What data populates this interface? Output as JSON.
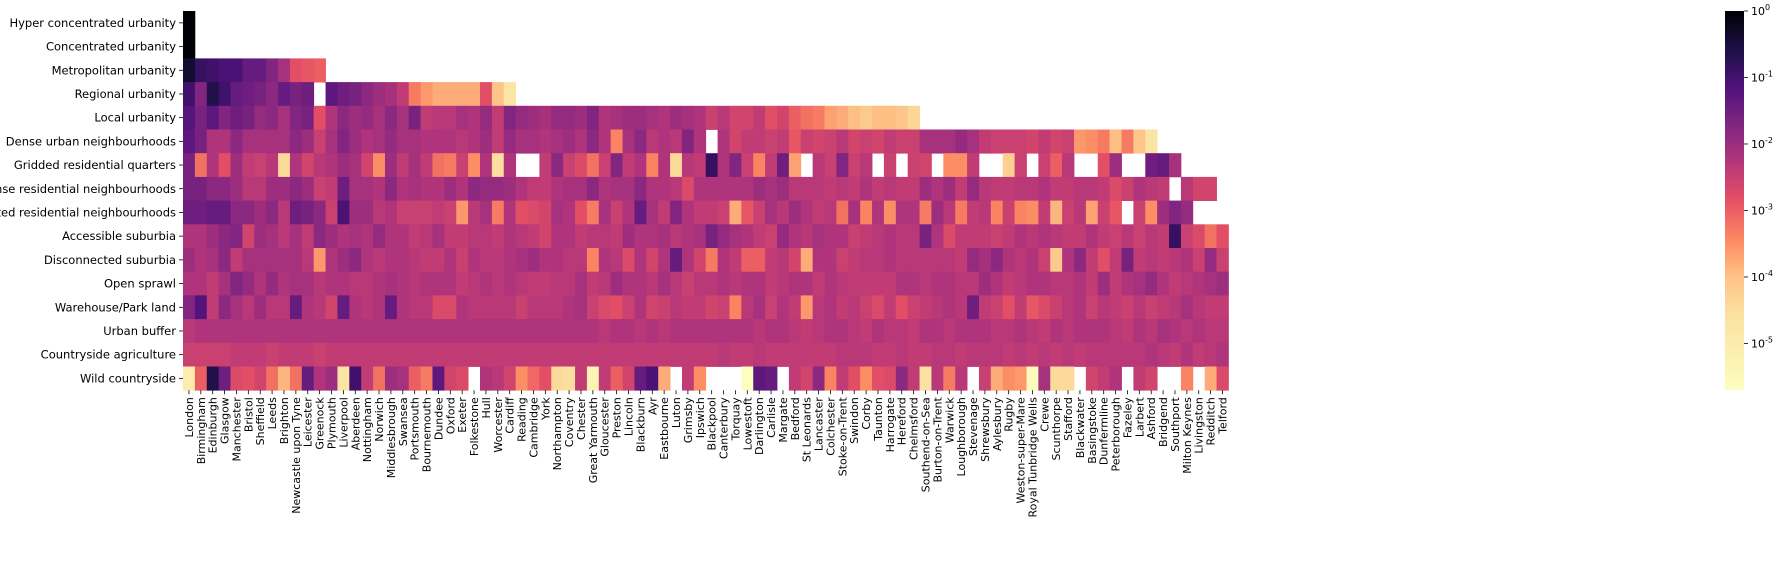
{
  "chart_data": {
    "type": "heatmap",
    "title": "",
    "xlabel": "",
    "ylabel": "",
    "rows": [
      "Hyper concentrated urbanity",
      "Concentrated urbanity",
      "Metropolitan urbanity",
      "Regional urbanity",
      "Local urbanity",
      "Dense urban neighbourhoods",
      "Gridded residential quarters",
      "Dense residential neighbourhoods",
      "Connected residential neighbourhoods",
      "Accessible suburbia",
      "Disconnected suburbia",
      "Open sprawl",
      "Warehouse/Park land",
      "Urban buffer",
      "Countryside agriculture",
      "Wild countryside"
    ],
    "columns": [
      "London",
      "Birmingham",
      "Edinburgh",
      "Glasgow",
      "Manchester",
      "Bristol",
      "Sheffield",
      "Leeds",
      "Brighton",
      "Newcastle upon Tyne",
      "Leicester",
      "Greenock",
      "Plymouth",
      "Liverpool",
      "Aberdeen",
      "Nottingham",
      "Norwich",
      "Middlesbrough",
      "Swansea",
      "Portsmouth",
      "Bournemouth",
      "Dundee",
      "Oxford",
      "Exeter",
      "Folkestone",
      "Hull",
      "Worcester",
      "Cardiff",
      "Reading",
      "Cambridge",
      "York",
      "Northampton",
      "Coventry",
      "Chester",
      "Great Yarmouth",
      "Gloucester",
      "Preston",
      "Lincoln",
      "Blackburn",
      "Ayr",
      "Eastbourne",
      "Luton",
      "Grimsby",
      "Ipswich",
      "Blackpool",
      "Canterbury",
      "Torquay",
      "Lowestoft",
      "Darlington",
      "Carlisle",
      "Margate",
      "Bedford",
      "St Leonards",
      "Lancaster",
      "Colchester",
      "Stoke-on-Trent",
      "Swindon",
      "Corby",
      "Taunton",
      "Harrogate",
      "Hereford",
      "Chelmsford",
      "Southend-on-Sea",
      "Burton-on-Trent",
      "Warwick",
      "Loughborough",
      "Stevenage",
      "Shrewsbury",
      "Aylesbury",
      "Rugby",
      "Weston-super-Mare",
      "Royal Tunbridge Wells",
      "Crewe",
      "Scunthorpe",
      "Stafford",
      "Blackwater",
      "Basingstoke",
      "Dunfermline",
      "Peterborough",
      "Fazeley",
      "Larbert",
      "Ashford",
      "Bridgend",
      "Southport",
      "Milton Keynes",
      "Livingston",
      "Redditch",
      "Telford"
    ],
    "colorbar": {
      "scale": "log",
      "min": 2e-06,
      "max": 1,
      "colormap": "magma_r",
      "tick_labels": [
        "10^0",
        "10^-1",
        "10^-2",
        "10^-3",
        "10^-4",
        "10^-5"
      ]
    },
    "note_values": "log10 of share, blank = no data",
    "values": [
      [
        0.0
      ],
      [
        0.0
      ],
      [
        -0.3,
        -0.7,
        -0.8,
        -0.9,
        -0.9,
        -1.2,
        -1.2,
        -1.5,
        -1.9,
        -2.6,
        -2.7,
        -2.8
      ],
      [
        -0.8,
        -1.5,
        -0.5,
        -0.8,
        -1.2,
        -1.3,
        -1.4,
        -1.6,
        -1.2,
        -1.4,
        -1.3,
        null,
        -1.1,
        -1.3,
        -1.4,
        -1.6,
        -1.8,
        -1.9,
        -2.2,
        -3.1,
        -3.4,
        -3.6,
        -3.6,
        -3.6,
        -3.6,
        -2.6,
        -3.9,
        -4.6
      ],
      [
        -1.0,
        -1.4,
        -1.1,
        -1.5,
        -1.3,
        -1.4,
        -1.7,
        -1.6,
        -1.9,
        -1.5,
        -1.4,
        -2.6,
        -2.0,
        -1.6,
        -1.8,
        -1.7,
        -1.9,
        -1.6,
        -1.9,
        -1.4,
        -2.2,
        -2.1,
        -2.1,
        -1.9,
        -2.0,
        -1.7,
        -2.2,
        -1.5,
        -1.7,
        -1.8,
        -1.9,
        -1.7,
        -1.7,
        -1.8,
        -1.5,
        -2.0,
        -1.9,
        -1.8,
        -1.8,
        -1.9,
        -2.0,
        -1.8,
        -1.9,
        -2.0,
        -2.3,
        -2.1,
        -2.4,
        -2.4,
        -2.2,
        -2.6,
        -2.4,
        -2.8,
        -3.0,
        -3.1,
        -3.5,
        -3.6,
        -3.8,
        -4.0,
        -3.8,
        -3.8,
        -3.9,
        -4.2
      ],
      [
        -1.1,
        -1.4,
        -2.0,
        -2.0,
        -1.6,
        -1.9,
        -1.9,
        -1.9,
        -1.9,
        -1.6,
        -1.8,
        -2.3,
        -1.9,
        -1.5,
        -1.8,
        -2.0,
        -1.9,
        -1.7,
        -1.9,
        -1.9,
        -2.0,
        -2.0,
        -2.0,
        -2.1,
        -2.0,
        -1.8,
        -2.2,
        -1.7,
        -1.9,
        -1.9,
        -2.0,
        -1.9,
        -1.8,
        -2.0,
        -1.6,
        -2.0,
        -3.2,
        -1.9,
        -1.6,
        -2.1,
        -2.0,
        -2.1,
        -1.5,
        -2.0,
        null,
        -2.0,
        -2.4,
        -2.2,
        -2.2,
        -2.3,
        -2.2,
        -2.7,
        -2.3,
        -2.4,
        -2.3,
        -2.1,
        -2.4,
        -2.3,
        -2.4,
        -2.2,
        -2.3,
        -2.3,
        -1.9,
        -1.9,
        -1.9,
        -1.7,
        -1.9,
        -2.2,
        -2.3,
        -2.3,
        -2.3,
        -2.4,
        -2.2,
        -2.4,
        -2.3,
        -3.4,
        -3.3,
        -3.1,
        -3.8,
        -3.1,
        -3.9,
        -4.6
      ],
      [
        -1.4,
        -3.0,
        -2.0,
        -2.6,
        -1.8,
        -2.2,
        -2.3,
        -2.1,
        -4.3,
        -2.0,
        -2.4,
        -2.1,
        -2.0,
        -1.8,
        -1.9,
        -2.4,
        -3.3,
        -1.8,
        -2.2,
        -1.9,
        -2.2,
        -3.0,
        -3.1,
        -2.3,
        -3.3,
        -2.0,
        -4.4,
        -2.0,
        null,
        null,
        -2.2,
        -1.6,
        -2.3,
        -2.5,
        -3.0,
        -2.3,
        -1.5,
        -2.2,
        -2.0,
        -3.2,
        -2.0,
        -4.3,
        -2.1,
        -2.2,
        -0.7,
        -2.0,
        -1.5,
        -2.3,
        -3.2,
        -2.2,
        -1.3,
        -3.5,
        null,
        -2.1,
        -2.3,
        -1.5,
        -2.3,
        -2.1,
        null,
        -2.3,
        null,
        -2.3,
        -2.4,
        null,
        -3.3,
        -3.3,
        -2.2,
        null,
        null,
        -4.1,
        -2.3,
        null,
        -2.3,
        -2.8,
        -2.1,
        null,
        null,
        -2.6,
        -1.8,
        null,
        null,
        -1.3,
        -1.2,
        -1.9
      ],
      [
        -1.4,
        -1.4,
        -1.6,
        -1.6,
        -1.8,
        -2.1,
        -2.1,
        -1.8,
        -1.8,
        -1.6,
        -1.8,
        -2.3,
        -2.2,
        -1.3,
        -1.9,
        -1.9,
        -2.0,
        -1.6,
        -2.0,
        -1.9,
        -2.0,
        -2.0,
        -1.8,
        -2.0,
        -1.6,
        -1.7,
        -1.7,
        -1.8,
        -2.0,
        -2.2,
        -2.2,
        -2.0,
        -1.9,
        -1.9,
        -1.6,
        -2.0,
        -1.9,
        -1.9,
        -1.6,
        -2.0,
        -2.0,
        -2.1,
        -2.5,
        -2.0,
        -2.0,
        -2.0,
        -2.0,
        -2.0,
        -1.8,
        -1.9,
        -1.8,
        -2.1,
        -2.1,
        -2.1,
        -2.2,
        -2.1,
        -2.2,
        -2.0,
        -2.2,
        -2.1,
        -2.2,
        -2.2,
        -1.8,
        -2.0,
        -1.8,
        -2.2,
        -1.7,
        -2.1,
        -2.2,
        -2.2,
        -2.1,
        -2.1,
        -2.0,
        -2.2,
        -2.2,
        -2.1,
        -2.1,
        -2.2,
        -2.5,
        -2.3,
        -2.0,
        -2.1,
        -2.2,
        null,
        -2.1,
        -2.4,
        -2.4
      ],
      [
        -1.3,
        -1.3,
        -1.2,
        -1.2,
        -1.6,
        -1.6,
        -1.8,
        -1.6,
        -2.1,
        -1.3,
        -1.4,
        -1.6,
        -2.3,
        -0.9,
        -1.8,
        -1.8,
        -2.1,
        -2.0,
        -2.3,
        -2.3,
        -2.3,
        -2.2,
        -2.3,
        -3.4,
        -2.1,
        -1.9,
        -3.1,
        -2.0,
        -2.6,
        -2.5,
        -2.4,
        -1.9,
        -2.0,
        -2.6,
        -3.1,
        -1.9,
        -2.3,
        -2.0,
        -1.2,
        -1.9,
        -2.2,
        -1.5,
        -2.0,
        -2.2,
        -2.2,
        -2.3,
        -3.6,
        -2.7,
        -2.3,
        -1.9,
        -2.1,
        -1.8,
        -2.0,
        -2.2,
        -2.1,
        -3.0,
        -1.9,
        -3.2,
        -2.0,
        -3.3,
        -2.0,
        -2.0,
        -3.1,
        -1.8,
        -2.1,
        -3.1,
        -2.2,
        -2.1,
        -3.2,
        -2.3,
        -3.2,
        -3.3,
        -2.2,
        -3.7,
        -2.3,
        -2.1,
        -3.5,
        -2.3,
        -2.7,
        null,
        -2.3,
        -3.3,
        -1.8,
        -1.5,
        -1.7,
        null,
        null
      ],
      [
        -2.0,
        -2.0,
        -1.8,
        -1.6,
        -1.5,
        -2.4,
        -1.8,
        -1.9,
        -2.1,
        -1.9,
        -2.2,
        -1.6,
        -1.8,
        -2.0,
        -1.9,
        -2.0,
        -1.7,
        -2.0,
        -2.0,
        -2.2,
        -2.1,
        -1.9,
        -2.2,
        -2.2,
        -2.1,
        -2.1,
        -2.2,
        -2.0,
        -2.1,
        -2.2,
        -2.4,
        -2.0,
        -2.0,
        -2.2,
        -2.1,
        -2.1,
        -2.2,
        -1.8,
        -2.0,
        -2.0,
        -1.9,
        -2.1,
        -2.0,
        -1.9,
        -1.4,
        -1.7,
        -1.9,
        -2.0,
        -2.2,
        -2.3,
        -1.7,
        -2.0,
        -2.1,
        -1.9,
        -2.0,
        -2.0,
        -2.3,
        -2.2,
        -2.1,
        -2.0,
        -2.1,
        -2.1,
        -1.4,
        -2.0,
        -2.5,
        -2.2,
        -2.2,
        -2.2,
        -2.3,
        -2.2,
        -2.0,
        -2.1,
        -2.0,
        -2.1,
        -2.2,
        -2.2,
        -2.0,
        -2.2,
        -2.3,
        -2.1,
        -2.3,
        -2.1,
        -2.2,
        -0.7,
        -2.3,
        -2.5,
        -3.0,
        -2.6
      ],
      [
        -1.8,
        -2.0,
        -1.9,
        -1.6,
        -2.2,
        -1.9,
        -1.9,
        -1.9,
        -1.9,
        -1.9,
        -2.1,
        -3.4,
        -2.0,
        -1.8,
        -1.6,
        -2.0,
        -2.1,
        -2.0,
        -2.0,
        -2.1,
        -2.2,
        -2.2,
        -2.0,
        -2.3,
        -2.0,
        -2.1,
        -2.1,
        -2.0,
        -1.9,
        -1.8,
        -2.0,
        -2.0,
        -2.1,
        -2.1,
        -3.2,
        -2.0,
        -2.1,
        -2.5,
        -2.0,
        -2.4,
        -2.0,
        -1.2,
        -2.0,
        -2.4,
        -3.1,
        -2.0,
        -2.2,
        -2.8,
        -2.8,
        -2.2,
        -2.1,
        -2.4,
        -3.6,
        -2.0,
        -2.0,
        -2.3,
        -2.2,
        -2.1,
        -2.1,
        -2.0,
        -2.1,
        -2.1,
        -2.1,
        -2.1,
        -2.1,
        -2.2,
        -1.7,
        -1.9,
        -1.6,
        -2.0,
        -2.1,
        -2.0,
        -2.3,
        -4.0,
        -2.0,
        -1.6,
        -2.2,
        -2.6,
        -2.2,
        -1.4,
        -2.2,
        -2.1,
        -2.2,
        -2.1,
        -2.0,
        -2.3,
        -1.7,
        -2.3
      ],
      [
        -2.0,
        -2.0,
        -2.2,
        -1.9,
        -1.5,
        -1.7,
        -2.0,
        -1.7,
        -2.0,
        -1.9,
        -1.9,
        -2.1,
        -2.0,
        -2.0,
        -2.1,
        -2.1,
        -2.0,
        -1.9,
        -2.0,
        -2.1,
        -2.0,
        -2.0,
        -2.0,
        -2.2,
        -2.1,
        -2.0,
        -2.1,
        -2.0,
        -2.1,
        -2.2,
        -2.2,
        -2.1,
        -2.1,
        -1.9,
        -2.2,
        -2.1,
        -1.8,
        -2.0,
        -2.0,
        -2.1,
        -1.9,
        -2.1,
        -2.3,
        -2.1,
        -2.1,
        -2.0,
        -2.1,
        -2.0,
        -2.0,
        -2.2,
        -2.1,
        -2.0,
        -2.0,
        -2.2,
        -2.0,
        -2.1,
        -2.2,
        -2.2,
        -2.2,
        -2.2,
        -2.0,
        -2.0,
        -2.1,
        -2.0,
        -2.0,
        -2.1,
        -2.1,
        -1.8,
        -2.0,
        -2.2,
        -2.1,
        -2.0,
        -2.0,
        -2.1,
        -2.1,
        -2.0,
        -2.2,
        -1.8,
        -2.2,
        -2.0,
        -1.9,
        -1.7,
        -2.0,
        -2.2,
        -2.1,
        -2.0,
        -1.9,
        -1.8
      ],
      [
        -1.5,
        -1.0,
        -2.2,
        -1.6,
        -1.9,
        -2.1,
        -1.8,
        -2.1,
        -2.1,
        -1.2,
        -2.0,
        -2.1,
        -2.4,
        -1.2,
        -2.0,
        -2.1,
        -2.0,
        -1.2,
        -2.0,
        -2.1,
        -2.1,
        -2.5,
        -2.5,
        -2.0,
        -2.1,
        -2.1,
        -2.1,
        -2.1,
        -2.3,
        -2.1,
        -2.1,
        -2.1,
        -2.0,
        -1.9,
        -2.3,
        -2.5,
        -2.6,
        -2.3,
        -2.0,
        -2.4,
        -2.3,
        -2.1,
        -2.2,
        -2.2,
        -2.4,
        -2.3,
        -3.2,
        -2.1,
        -1.9,
        -2.3,
        -2.0,
        -2.2,
        -3.4,
        -2.1,
        -2.0,
        -2.2,
        -2.1,
        -2.3,
        -2.5,
        -2.2,
        -2.6,
        -2.3,
        -2.2,
        -2.1,
        -2.0,
        -2.1,
        -1.3,
        -2.2,
        -2.3,
        -2.6,
        -2.2,
        -2.7,
        -2.5,
        -2.3,
        -2.1,
        -2.0,
        -2.3,
        -2.1,
        -2.2,
        -2.3,
        -2.1,
        -2.3,
        -2.2,
        -2.1,
        -1.9,
        -2.1,
        -2.2,
        -2.2
      ],
      [
        -2.1,
        -2.0,
        -2.0,
        -2.0,
        -2.0,
        -2.0,
        -2.0,
        -2.0,
        -2.0,
        -2.0,
        -2.0,
        -2.0,
        -2.0,
        -2.0,
        -2.0,
        -2.0,
        -2.0,
        -2.0,
        -2.0,
        -2.0,
        -2.0,
        -2.0,
        -2.0,
        -2.0,
        -2.0,
        -2.0,
        -2.0,
        -2.0,
        -2.0,
        -2.0,
        -2.0,
        -2.0,
        -2.0,
        -2.0,
        -2.0,
        -2.1,
        -2.0,
        -2.0,
        -2.1,
        -2.0,
        -2.1,
        -2.0,
        -2.0,
        -2.0,
        -2.0,
        -2.0,
        -2.0,
        -2.0,
        -2.1,
        -2.0,
        -2.0,
        -2.1,
        -2.2,
        -2.1,
        -2.0,
        -2.0,
        -2.1,
        -2.2,
        -2.0,
        -2.1,
        -2.1,
        -2.2,
        -2.0,
        -2.0,
        -2.1,
        -2.0,
        -2.0,
        -2.0,
        -2.1,
        -2.1,
        -2.0,
        -2.1,
        -2.2,
        -2.0,
        -2.1,
        -2.0,
        -2.0,
        -2.0,
        -2.1,
        -2.2,
        -2.0,
        -2.1,
        -1.9,
        -2.0,
        -2.1,
        -2.0,
        -2.1,
        -2.1
      ],
      [
        -2.3,
        -2.3,
        -2.3,
        -2.3,
        -2.2,
        -2.2,
        -2.2,
        -2.3,
        -2.2,
        -2.2,
        -2.2,
        -2.3,
        -2.2,
        -2.2,
        -2.2,
        -2.2,
        -2.2,
        -2.2,
        -2.2,
        -2.2,
        -2.2,
        -2.2,
        -2.2,
        -2.2,
        -2.2,
        -2.2,
        -2.2,
        -2.2,
        -2.2,
        -2.2,
        -2.2,
        -2.2,
        -2.2,
        -2.2,
        -2.2,
        -2.2,
        -2.2,
        -2.2,
        -2.2,
        -2.2,
        -2.2,
        -2.2,
        -2.2,
        -2.2,
        -2.2,
        -2.1,
        -2.2,
        -2.2,
        -2.1,
        -2.2,
        -2.2,
        -2.2,
        -2.2,
        -2.2,
        -2.2,
        -2.1,
        -2.1,
        -2.1,
        -2.2,
        -2.2,
        -2.1,
        -2.2,
        -2.2,
        -2.1,
        -2.1,
        -2.2,
        -2.1,
        -2.1,
        -2.1,
        -2.2,
        -2.1,
        -2.2,
        -2.1,
        -2.2,
        -2.1,
        -2.2,
        -2.1,
        -2.1,
        -2.1,
        -2.1,
        -2.1,
        -2.0,
        -2.1,
        -2.2,
        -2.0,
        -2.2,
        -2.1,
        -2.0
      ],
      [
        -5.0,
        -2.8,
        -0.5,
        -1.3,
        -2.5,
        -2.6,
        -2.4,
        -3.0,
        -3.7,
        -3.0,
        -1.2,
        -2.0,
        -1.8,
        -4.6,
        -0.8,
        -2.2,
        -3.0,
        -1.8,
        -1.9,
        -2.8,
        -3.1,
        -1.1,
        -2.4,
        -2.5,
        null,
        -2.0,
        -2.1,
        -2.4,
        -3.3,
        -2.9,
        -2.6,
        -4.3,
        -4.4,
        -2.2,
        -5.3,
        -2.2,
        -2.8,
        -2.4,
        -1.2,
        -0.9,
        -3.6,
        null,
        -2.2,
        -3.3,
        null,
        null,
        null,
        -5.7,
        -1.1,
        -1.2,
        null,
        -2.2,
        -2.4,
        -1.6,
        -3.2,
        -2.2,
        -2.6,
        -3.3,
        -2.6,
        -2.5,
        -1.6,
        -2.2,
        -4.5,
        -2.1,
        -3.1,
        -2.1,
        null,
        -2.3,
        -3.6,
        -3.3,
        -3.4,
        -5.6,
        -1.9,
        -4.3,
        -4.3,
        null,
        -2.4,
        -2.2,
        -2.0,
        null,
        -2.2,
        -2.4,
        null,
        null,
        -3.2,
        null,
        -3.6,
        -2.5
      ]
    ]
  }
}
